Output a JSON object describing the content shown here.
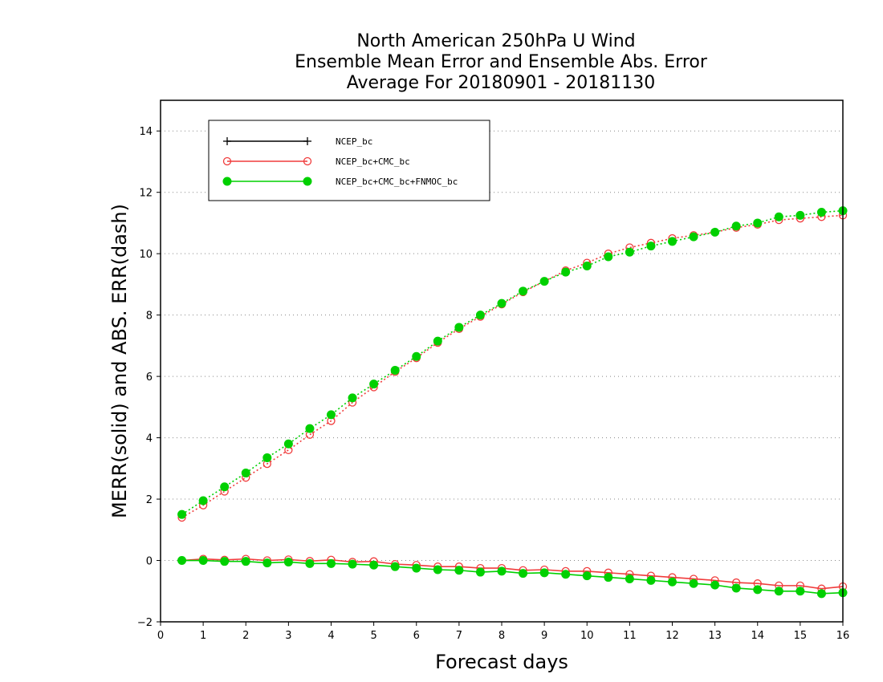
{
  "chart_data": {
    "type": "line",
    "title": [
      "North American 250hPa U Wind",
      "Ensemble Mean Error and Ensemble Abs. Error",
      "Average For 20180901 - 20181130"
    ],
    "xlabel": "Forecast days",
    "ylabel": "MERR(solid) and ABS. ERR(dash)",
    "xlim": [
      0,
      16
    ],
    "ylim": [
      -2,
      15
    ],
    "xticks": [
      0,
      1,
      2,
      3,
      4,
      5,
      6,
      7,
      8,
      9,
      10,
      11,
      12,
      13,
      14,
      15,
      16
    ],
    "yticks": [
      -2,
      0,
      2,
      4,
      6,
      8,
      10,
      12,
      14
    ],
    "grid": "horizontal-dotted",
    "legend_position": "top-left",
    "x": [
      0.5,
      1,
      1.5,
      2,
      2.5,
      3,
      3.5,
      4,
      4.5,
      5,
      5.5,
      6,
      6.5,
      7,
      7.5,
      8,
      8.5,
      9,
      9.5,
      10,
      10.5,
      11,
      11.5,
      12,
      12.5,
      13,
      13.5,
      14,
      14.5,
      15,
      15.5,
      16
    ],
    "series": [
      {
        "name": "NCEP_bc",
        "color": "#000000",
        "marker": "plus",
        "merr": [],
        "abs_err": []
      },
      {
        "name": "NCEP_bc+CMC_bc",
        "color": "#f03c3c",
        "marker": "open-circle",
        "merr": [
          0.0,
          0.05,
          0.02,
          0.05,
          0.0,
          0.03,
          -0.02,
          0.02,
          -0.05,
          -0.03,
          -0.12,
          -0.15,
          -0.2,
          -0.2,
          -0.25,
          -0.25,
          -0.32,
          -0.3,
          -0.35,
          -0.35,
          -0.4,
          -0.45,
          -0.5,
          -0.55,
          -0.6,
          -0.65,
          -0.72,
          -0.75,
          -0.82,
          -0.82,
          -0.92,
          -0.85
        ],
        "abs_err": [
          1.4,
          1.8,
          2.25,
          2.7,
          3.15,
          3.6,
          4.1,
          4.55,
          5.15,
          5.65,
          6.15,
          6.6,
          7.1,
          7.55,
          7.95,
          8.35,
          8.75,
          9.1,
          9.45,
          9.7,
          10.0,
          10.2,
          10.35,
          10.5,
          10.6,
          10.7,
          10.85,
          10.95,
          11.1,
          11.15,
          11.2,
          11.25
        ]
      },
      {
        "name": "NCEP_bc+CMC_bc+FNMOC_bc",
        "color": "#00d000",
        "marker": "filled-circle",
        "merr": [
          0.0,
          0.0,
          -0.03,
          -0.03,
          -0.08,
          -0.05,
          -0.1,
          -0.1,
          -0.12,
          -0.15,
          -0.2,
          -0.25,
          -0.3,
          -0.32,
          -0.38,
          -0.35,
          -0.42,
          -0.4,
          -0.45,
          -0.5,
          -0.55,
          -0.6,
          -0.65,
          -0.7,
          -0.75,
          -0.8,
          -0.9,
          -0.95,
          -1.0,
          -1.0,
          -1.08,
          -1.05
        ],
        "abs_err": [
          1.5,
          1.95,
          2.4,
          2.85,
          3.35,
          3.8,
          4.3,
          4.75,
          5.3,
          5.75,
          6.2,
          6.65,
          7.15,
          7.6,
          8.0,
          8.38,
          8.78,
          9.1,
          9.4,
          9.6,
          9.9,
          10.05,
          10.25,
          10.4,
          10.55,
          10.7,
          10.9,
          11.0,
          11.2,
          11.25,
          11.35,
          11.4
        ]
      }
    ]
  }
}
